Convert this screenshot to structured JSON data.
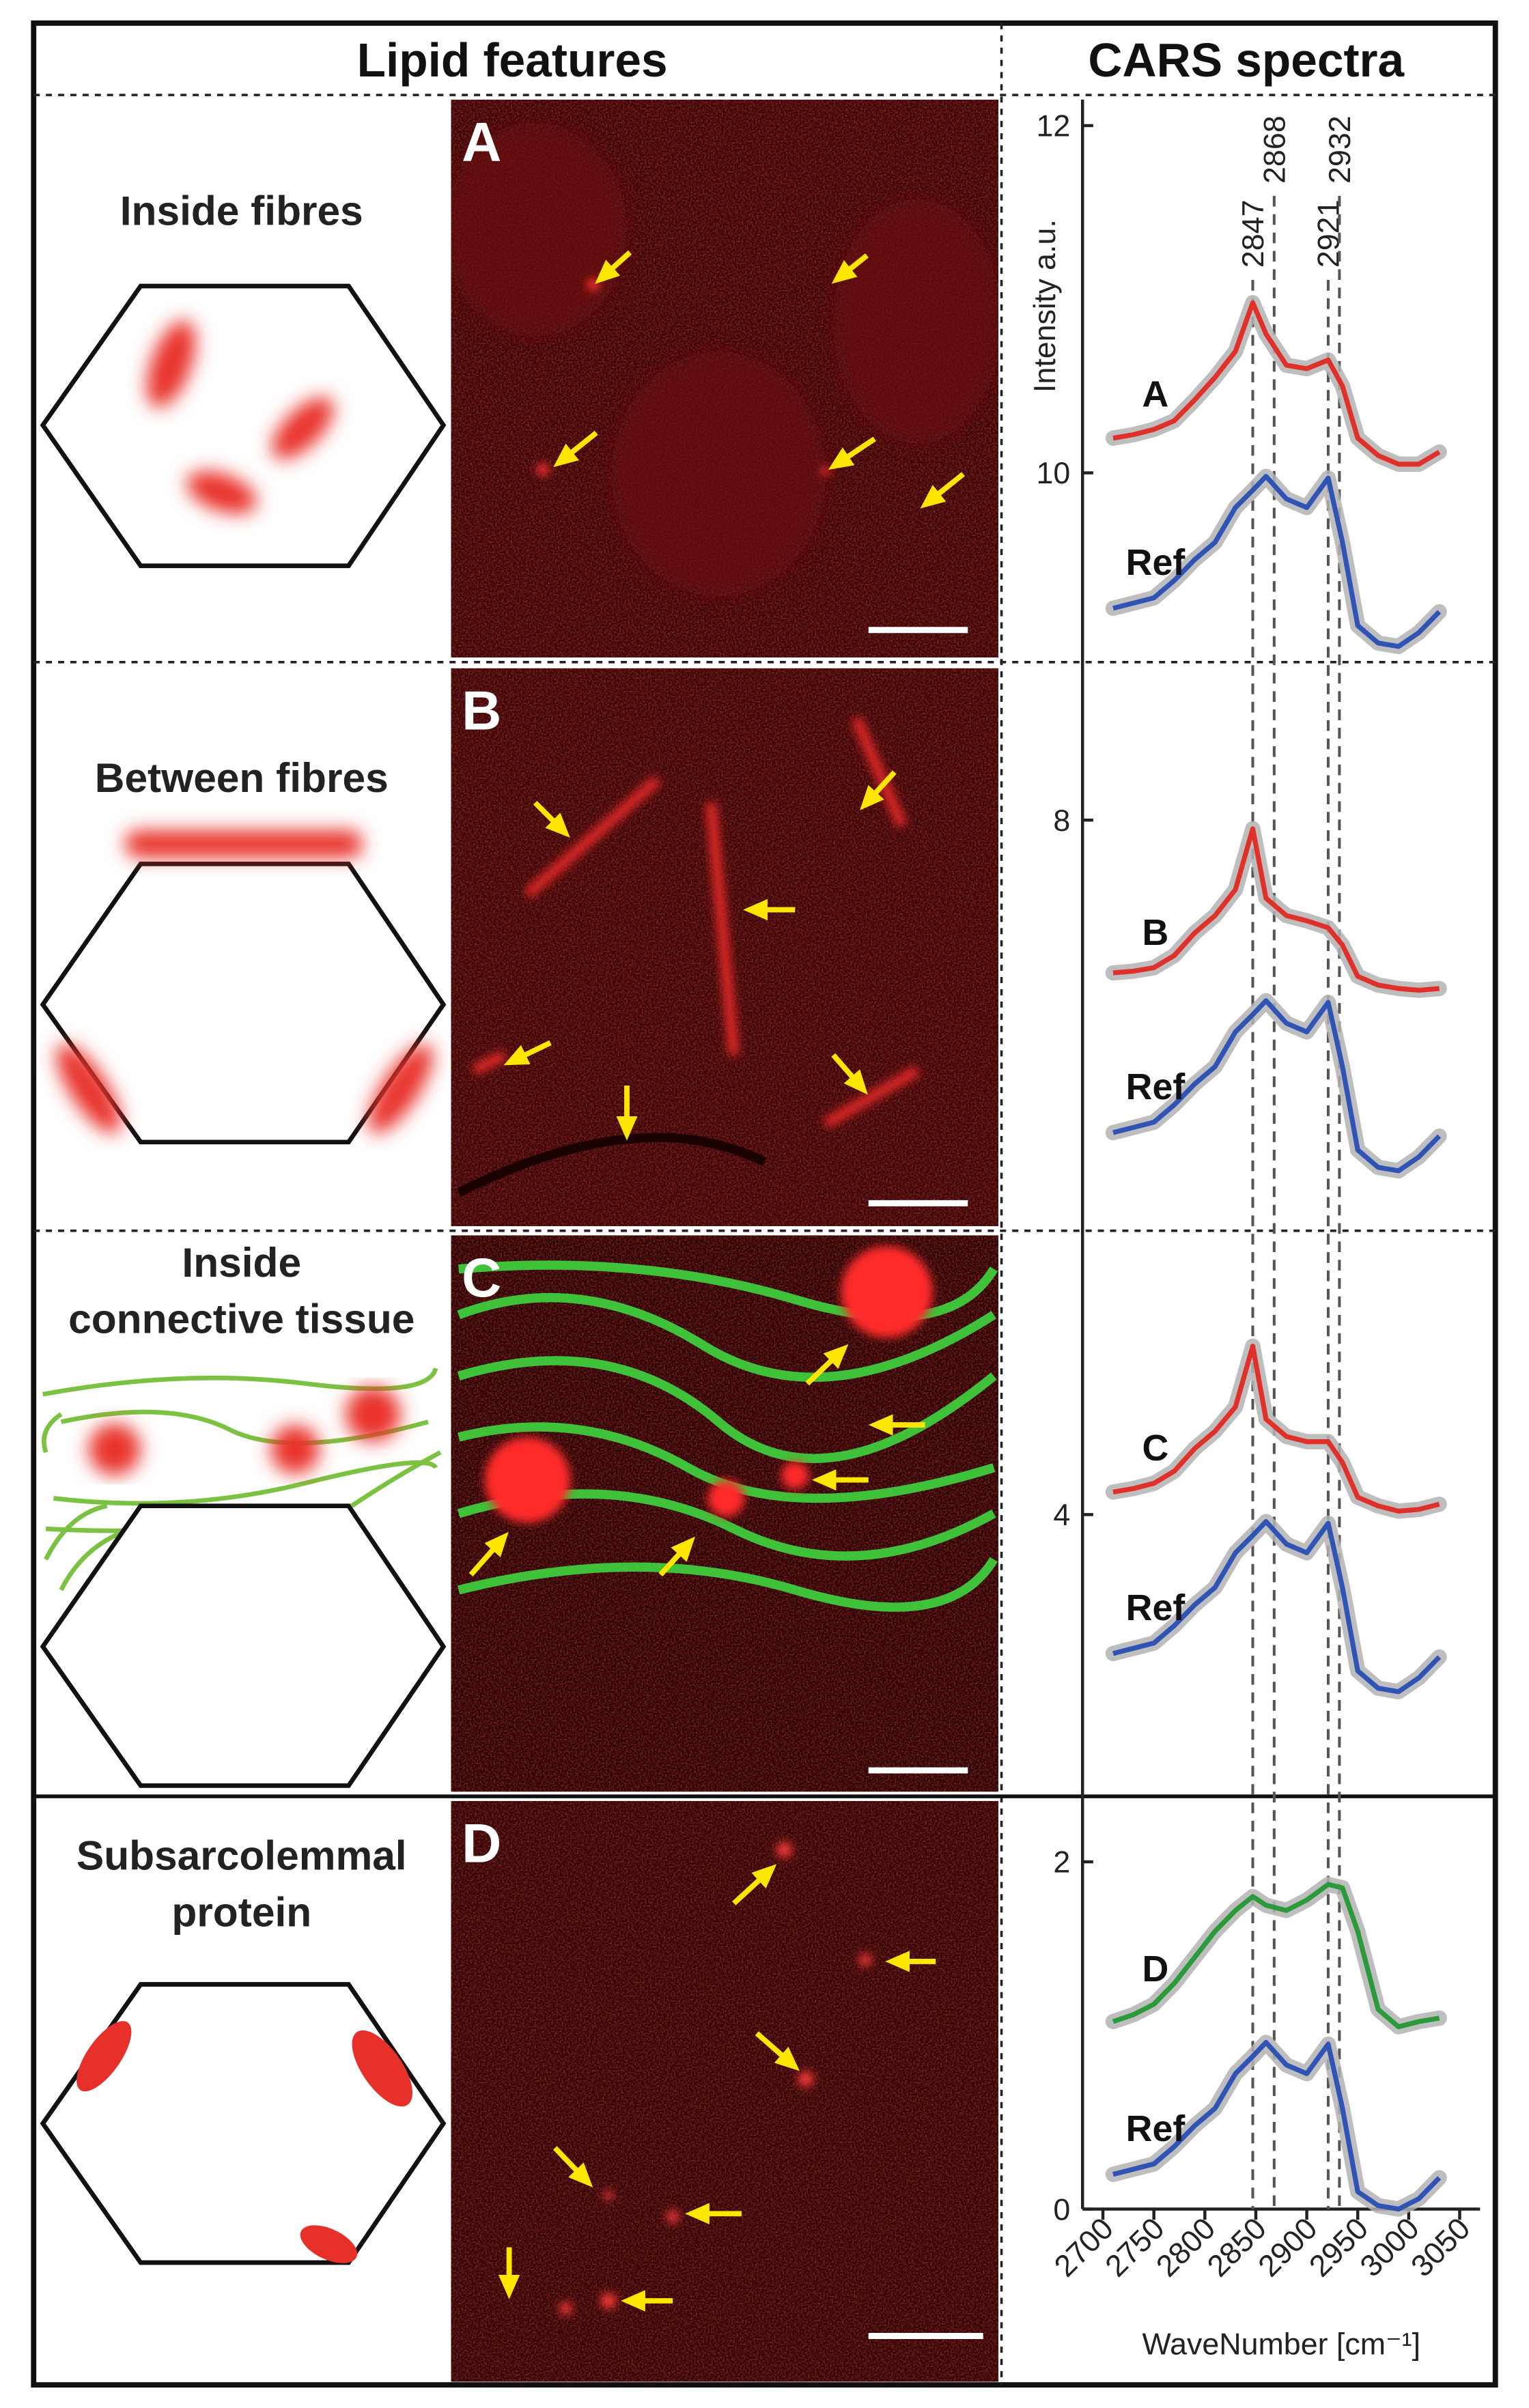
{
  "header": {
    "left": "Lipid features",
    "right": "CARS spectra"
  },
  "rows": [
    {
      "panel": "A",
      "label": [
        "Inside fibres"
      ]
    },
    {
      "panel": "B",
      "label": [
        "Between fibres"
      ]
    },
    {
      "panel": "C",
      "label": [
        "Inside",
        "connective tissue"
      ]
    },
    {
      "panel": "D",
      "label": [
        "Subsarcolemmal",
        "protein"
      ]
    }
  ],
  "chart_data": {
    "type": "line",
    "x": [
      2710,
      2730,
      2750,
      2770,
      2790,
      2810,
      2830,
      2847,
      2860,
      2880,
      2900,
      2921,
      2935,
      2950,
      2970,
      2990,
      3010,
      3030
    ],
    "series": [
      {
        "name": "A",
        "color": "#e0302a",
        "values": [
          10.2,
          10.22,
          10.25,
          10.3,
          10.42,
          10.55,
          10.7,
          10.98,
          10.8,
          10.62,
          10.6,
          10.65,
          10.5,
          10.2,
          10.1,
          10.05,
          10.05,
          10.12
        ]
      },
      {
        "name": "Ref",
        "color": "#2f54b5",
        "values": [
          9.22,
          9.25,
          9.28,
          9.38,
          9.5,
          9.6,
          9.8,
          9.9,
          9.98,
          9.85,
          9.8,
          9.97,
          9.6,
          9.12,
          9.02,
          9.0,
          9.08,
          9.2
        ]
      },
      {
        "name": "B",
        "color": "#e0302a",
        "values": [
          7.12,
          7.13,
          7.15,
          7.22,
          7.35,
          7.45,
          7.6,
          7.95,
          7.55,
          7.45,
          7.42,
          7.38,
          7.28,
          7.1,
          7.05,
          7.03,
          7.02,
          7.03
        ]
      },
      {
        "name": "Ref",
        "color": "#2f54b5",
        "values": [
          6.2,
          6.23,
          6.26,
          6.36,
          6.48,
          6.58,
          6.78,
          6.88,
          6.96,
          6.83,
          6.78,
          6.95,
          6.58,
          6.1,
          6.0,
          5.98,
          6.06,
          6.18
        ]
      },
      {
        "name": "C",
        "color": "#e0302a",
        "values": [
          4.13,
          4.15,
          4.18,
          4.25,
          4.38,
          4.48,
          4.62,
          4.97,
          4.55,
          4.45,
          4.42,
          4.42,
          4.3,
          4.1,
          4.05,
          4.02,
          4.03,
          4.06
        ]
      },
      {
        "name": "Ref",
        "color": "#2f54b5",
        "values": [
          3.2,
          3.23,
          3.26,
          3.36,
          3.48,
          3.58,
          3.78,
          3.88,
          3.96,
          3.83,
          3.78,
          3.95,
          3.58,
          3.1,
          3.0,
          2.98,
          3.06,
          3.18
        ]
      },
      {
        "name": "D",
        "color": "#2a9a3a",
        "values": [
          1.08,
          1.12,
          1.18,
          1.3,
          1.45,
          1.6,
          1.72,
          1.8,
          1.75,
          1.72,
          1.78,
          1.87,
          1.85,
          1.6,
          1.15,
          1.05,
          1.08,
          1.1
        ]
      },
      {
        "name": "Ref",
        "color": "#2f54b5",
        "values": [
          0.2,
          0.23,
          0.26,
          0.36,
          0.48,
          0.58,
          0.78,
          0.88,
          0.96,
          0.83,
          0.78,
          0.95,
          0.58,
          0.1,
          0.02,
          0.0,
          0.06,
          0.18
        ]
      }
    ],
    "band_color": "#b3b3b3",
    "vlines": [
      2847,
      2868,
      2921,
      2932
    ],
    "xlim": [
      2680,
      3070
    ],
    "ylim": [
      0,
      12.15
    ],
    "xticks": [
      2700,
      2750,
      2800,
      2850,
      2900,
      2950,
      3000,
      3050
    ],
    "yticks": [
      0,
      2,
      4,
      8,
      10,
      12
    ],
    "xlabel": "WaveNumber [cm⁻¹]",
    "ylabel": "Intensity a.u."
  }
}
